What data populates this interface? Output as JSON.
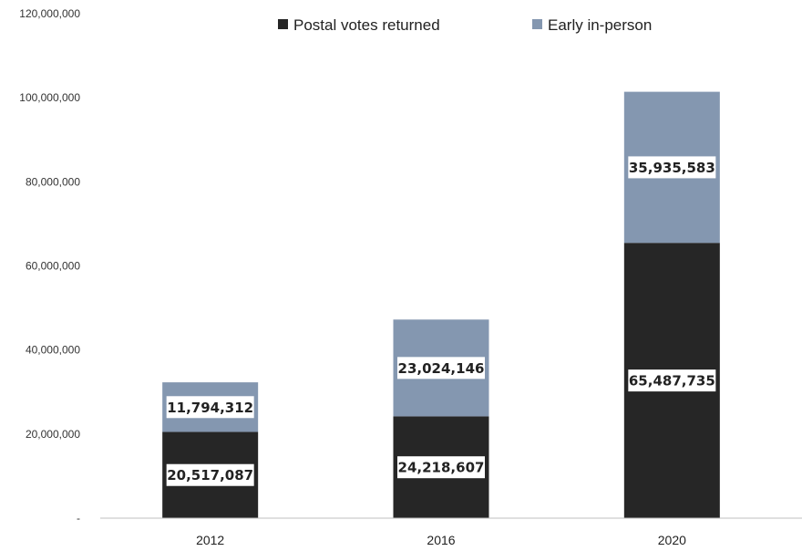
{
  "chart_data": {
    "type": "bar",
    "stacked": true,
    "categories": [
      "2012",
      "2016",
      "2020"
    ],
    "series": [
      {
        "name": "Postal votes returned",
        "color": "#262626",
        "values": [
          20517087,
          24218607,
          65487735
        ]
      },
      {
        "name": "Early in-person",
        "color": "#8497b0",
        "values": [
          11794312,
          23024146,
          35935583
        ]
      }
    ],
    "data_labels": {
      "Postal votes returned": [
        "20,517,087",
        "24,218,607",
        "65,487,735"
      ],
      "Early in-person": [
        "11,794,312",
        "23,024,146",
        "35,935,583"
      ]
    },
    "yticks": [
      0,
      20000000,
      40000000,
      60000000,
      80000000,
      100000000,
      120000000
    ],
    "ytick_labels": [
      "-",
      "20,000,000",
      "40,000,000",
      "60,000,000",
      "80,000,000",
      "100,000,000",
      "120,000,000"
    ],
    "ylim": [
      0,
      120000000
    ],
    "legend": {
      "position": "top"
    },
    "grid": false,
    "title": "",
    "xlabel": "",
    "ylabel": ""
  }
}
